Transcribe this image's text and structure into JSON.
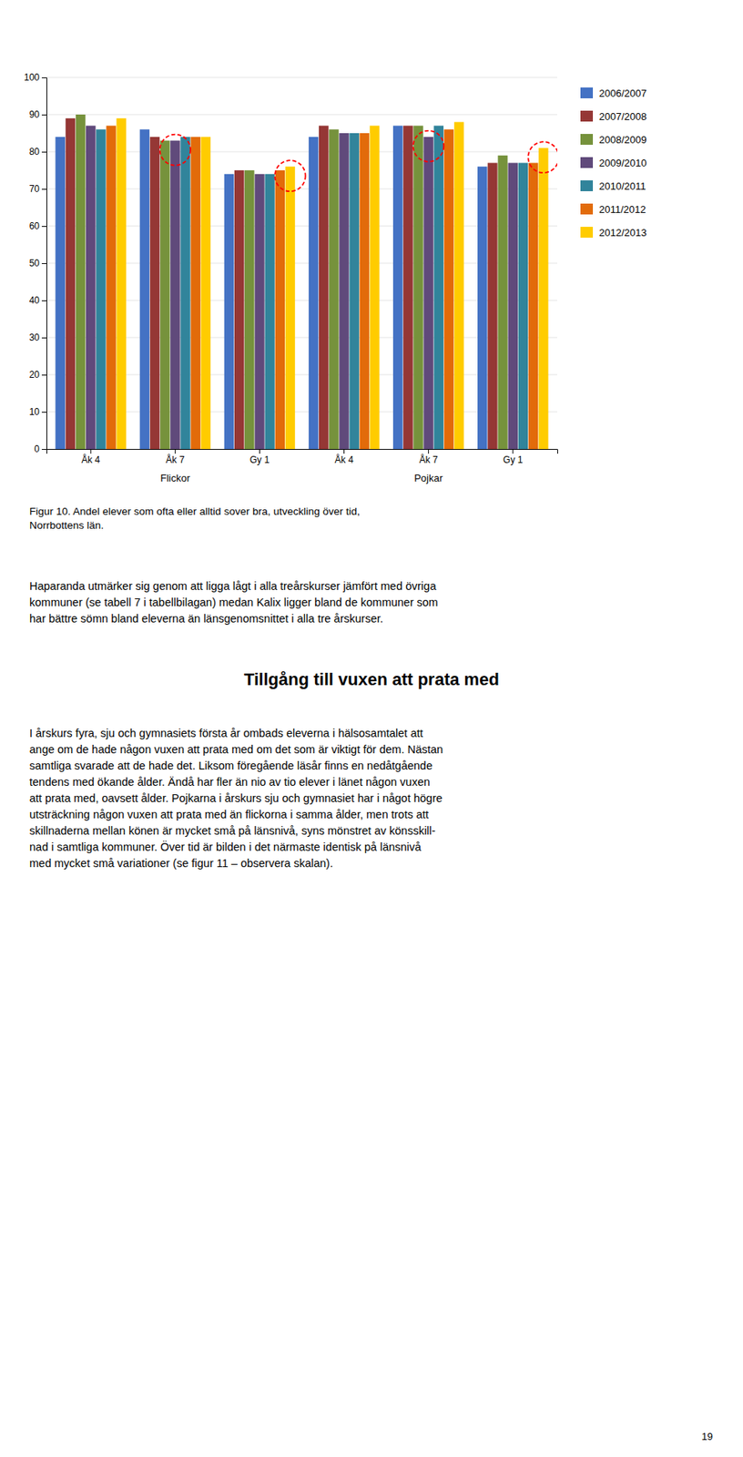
{
  "chart_data": {
    "type": "bar",
    "title": "Figur 10. Andel elever som ofta eller alltid sover bra, utveckling över tid,\nNorrbottens län.",
    "categories": [
      "Åk 4",
      "Åk 7",
      "Gy 1",
      "Åk 4",
      "Åk 7",
      "Gy 1"
    ],
    "group_labels": [
      "Flickor",
      "Pojkar"
    ],
    "series": [
      {
        "name": "2006/2007",
        "color": "#4472C4",
        "values": [
          84,
          86,
          74,
          84,
          87,
          76
        ]
      },
      {
        "name": "2007/2008",
        "color": "#953735",
        "values": [
          89,
          84,
          75,
          87,
          87,
          77
        ]
      },
      {
        "name": "2008/2009",
        "color": "#76923C",
        "values": [
          90,
          83,
          75,
          86,
          87,
          79
        ]
      },
      {
        "name": "2009/2010",
        "color": "#604A7B",
        "values": [
          87,
          83,
          74,
          85,
          84,
          77
        ]
      },
      {
        "name": "2010/2011",
        "color": "#31849B",
        "values": [
          86,
          84,
          74,
          85,
          87,
          77
        ]
      },
      {
        "name": "2011/2012",
        "color": "#E26B0A",
        "values": [
          87,
          84,
          75,
          85,
          86,
          77
        ]
      },
      {
        "name": "2012/2013",
        "color": "#FFCC00",
        "values": [
          89,
          84,
          76,
          87,
          88,
          81
        ]
      }
    ],
    "highlights": [
      {
        "category": 1,
        "series": 3
      },
      {
        "category": 2,
        "series": 6
      },
      {
        "category": 4,
        "series": 3
      },
      {
        "category": 5,
        "series": 6
      }
    ],
    "ylim": [
      0,
      100
    ],
    "yticks": [
      0,
      10,
      20,
      30,
      40,
      50,
      60,
      70,
      80,
      90,
      100
    ],
    "grid": true,
    "legend": "right"
  },
  "page": {
    "paragraphs": [
      "Haparanda utmärker sig genom att ligga lågt i alla treårskurser jämfört med övriga\nkommuner (se tabell 7 i tabellbilagan) medan Kalix ligger bland de kommuner som\nhar bättre sömn bland eleverna än länsgenomsnittet i alla tre årskurser.",
      "I årskurs fyra, sju och gymnasiets första år ombads eleverna i hälsosamtalet att\nange om de hade någon vuxen att prata med om det som är viktigt för dem. Nästan\nsamtliga svarade att de hade det. Liksom föregående läsår finns en nedåtgående\ntendens med ökande ålder. Ändå har fler än nio av tio elever i länet någon vuxen\natt prata med, oavsett ålder. Pojkarna i årskurs sju och gymnasiet har i något högre\nutsträckning någon vuxen att prata med än flickorna i samma ålder, men trots att\nskillnaderna mellan könen är mycket små på länsnivå, syns mönstret av könsskill-\nnad i samtliga kommuner. Över tid är bilden i det närmaste identisk på länsnivå\nmed mycket små variationer (se figur 11 – observera skalan)."
    ],
    "heading": "Tillgång till vuxen att prata med",
    "page_number": "19"
  }
}
